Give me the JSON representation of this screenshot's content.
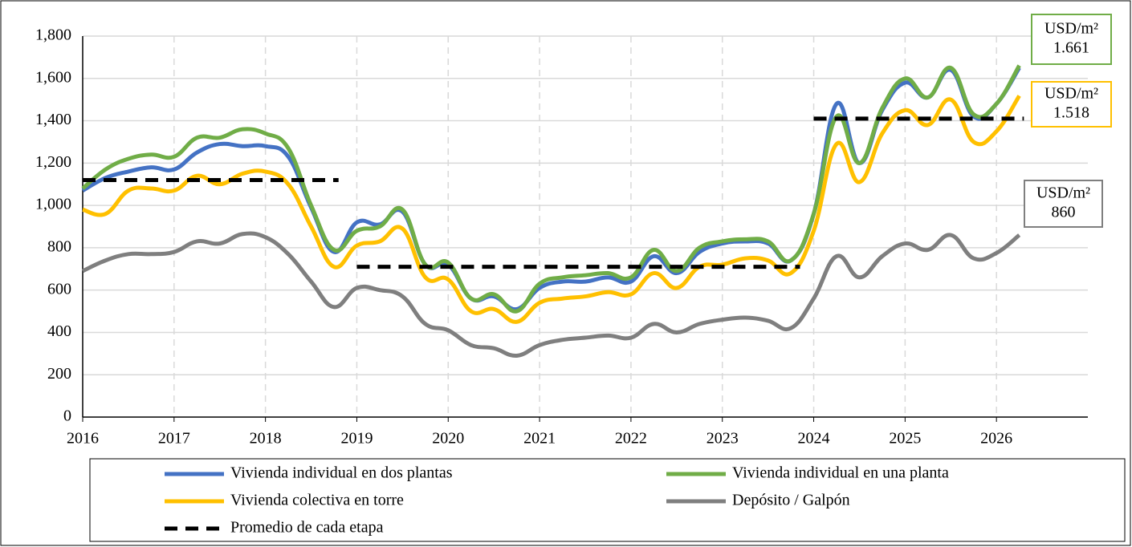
{
  "chart_data": {
    "type": "line",
    "x": [
      2016,
      2016.25,
      2016.5,
      2016.75,
      2017,
      2017.25,
      2017.5,
      2017.75,
      2018,
      2018.25,
      2018.5,
      2018.75,
      2019,
      2019.25,
      2019.5,
      2019.75,
      2020,
      2020.25,
      2020.5,
      2020.75,
      2021,
      2021.25,
      2021.5,
      2021.75,
      2022,
      2022.25,
      2022.5,
      2022.75,
      2023,
      2023.25,
      2023.5,
      2023.75,
      2024,
      2024.25,
      2024.5,
      2024.75,
      2025,
      2025.25,
      2025.5,
      2025.75,
      2026,
      2026.25
    ],
    "series": [
      {
        "name": "Vivienda individual en dos plantas",
        "color": "#4472c4",
        "values": [
          1070,
          1130,
          1160,
          1180,
          1170,
          1250,
          1290,
          1280,
          1280,
          1230,
          990,
          780,
          920,
          910,
          970,
          720,
          720,
          560,
          570,
          510,
          610,
          640,
          640,
          660,
          640,
          760,
          680,
          780,
          820,
          830,
          820,
          740,
          960,
          1480,
          1200,
          1450,
          1580,
          1510,
          1640,
          1420,
          1480,
          1650
        ]
      },
      {
        "name": "Vivienda individual en una planta",
        "color": "#70ad47",
        "values": [
          1080,
          1170,
          1220,
          1240,
          1230,
          1320,
          1320,
          1360,
          1340,
          1270,
          1000,
          790,
          880,
          900,
          980,
          720,
          730,
          560,
          580,
          500,
          630,
          660,
          670,
          680,
          660,
          790,
          690,
          800,
          830,
          840,
          830,
          740,
          960,
          1420,
          1200,
          1460,
          1600,
          1510,
          1650,
          1430,
          1480,
          1661
        ]
      },
      {
        "name": "Vivienda colectiva en torre",
        "color": "#ffc000",
        "values": [
          980,
          960,
          1070,
          1080,
          1070,
          1140,
          1100,
          1150,
          1160,
          1100,
          900,
          710,
          810,
          830,
          890,
          660,
          650,
          500,
          510,
          450,
          540,
          560,
          570,
          590,
          580,
          680,
          610,
          710,
          720,
          750,
          740,
          680,
          880,
          1290,
          1110,
          1340,
          1450,
          1380,
          1500,
          1300,
          1350,
          1518
        ]
      },
      {
        "name": "Depósito / Galpón",
        "color": "#7f7f7f",
        "values": [
          690,
          740,
          770,
          770,
          780,
          830,
          820,
          865,
          850,
          770,
          640,
          520,
          610,
          600,
          570,
          440,
          410,
          340,
          325,
          290,
          340,
          365,
          375,
          385,
          375,
          440,
          400,
          440,
          460,
          470,
          455,
          420,
          560,
          760,
          660,
          760,
          820,
          790,
          860,
          750,
          775,
          860
        ]
      }
    ],
    "averages": {
      "name": "Promedio de cada etapa",
      "color": "#000000",
      "segments": [
        {
          "start": 2016,
          "end": 2018.8,
          "value": 1120
        },
        {
          "start": 2019,
          "end": 2023.85,
          "value": 710
        },
        {
          "start": 2024,
          "end": 2026.3,
          "value": 1410
        }
      ]
    },
    "annotations": [
      {
        "lines": [
          "USD/m²",
          "1.661"
        ],
        "color": "#70ad47"
      },
      {
        "lines": [
          "USD/m²",
          "1.518"
        ],
        "color": "#ffc000"
      },
      {
        "lines": [
          "USD/m²",
          "860"
        ],
        "color": "#7f7f7f"
      }
    ],
    "xlim": [
      2016,
      2027
    ],
    "xticks": [
      2016,
      2017,
      2018,
      2019,
      2020,
      2021,
      2022,
      2023,
      2024,
      2025,
      2026
    ],
    "ylim": [
      0,
      1800
    ],
    "yticks": [
      0,
      200,
      400,
      600,
      800,
      {
        "value": 1000,
        "label": "1,000"
      },
      {
        "value": 1200,
        "label": "1,200"
      },
      {
        "value": 1400,
        "label": "1,400"
      },
      {
        "value": 1600,
        "label": "1,600"
      },
      {
        "value": 1800,
        "label": "1,800"
      }
    ],
    "grid": true
  }
}
